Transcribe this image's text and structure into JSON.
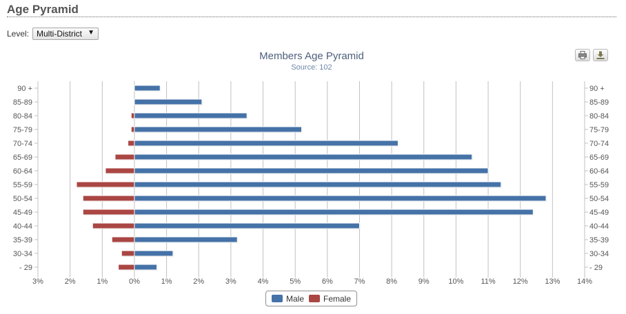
{
  "page": {
    "title": "Age Pyramid"
  },
  "level": {
    "label": "Level:",
    "selected": "Multi-District"
  },
  "toolbar": {
    "print_icon": "print-icon",
    "download_icon": "download-icon"
  },
  "colors": {
    "male": "#4572a7",
    "female": "#aa4643",
    "grid": "#c0c0c0",
    "title": "#4d5f7c",
    "subtitle": "#6d87a8",
    "axis_text": "#555555"
  },
  "chart_data": {
    "type": "bar",
    "orientation": "horizontal",
    "title": "Members Age Pyramid",
    "subtitle": "Source: 102",
    "categories": [
      "90 +",
      "85-89",
      "80-84",
      "75-79",
      "70-74",
      "65-69",
      "60-64",
      "55-59",
      "50-54",
      "45-49",
      "40-44",
      "35-39",
      "30-34",
      "- 29"
    ],
    "series": [
      {
        "name": "Male",
        "color": "#4572a7",
        "values": [
          0.8,
          2.1,
          3.5,
          5.2,
          8.2,
          10.5,
          11.0,
          11.4,
          12.8,
          12.4,
          7.0,
          3.2,
          1.2,
          0.7
        ]
      },
      {
        "name": "Female",
        "color": "#aa4643",
        "values": [
          0.0,
          0.0,
          -0.1,
          -0.1,
          -0.2,
          -0.6,
          -0.9,
          -1.8,
          -1.6,
          -1.6,
          -1.3,
          -0.7,
          -0.4,
          -0.5
        ]
      }
    ],
    "xlim": [
      -3,
      14
    ],
    "xticks": [
      -3,
      -2,
      -1,
      0,
      1,
      2,
      3,
      4,
      5,
      6,
      7,
      8,
      9,
      10,
      11,
      12,
      13,
      14
    ],
    "xtick_labels": [
      "3%",
      "2%",
      "1%",
      "0%",
      "1%",
      "2%",
      "3%",
      "4%",
      "5%",
      "6%",
      "7%",
      "8%",
      "9%",
      "10%",
      "11%",
      "12%",
      "13%",
      "14%"
    ],
    "grid": true,
    "legend": {
      "position": "bottom-center",
      "items": [
        "Male",
        "Female"
      ]
    }
  }
}
